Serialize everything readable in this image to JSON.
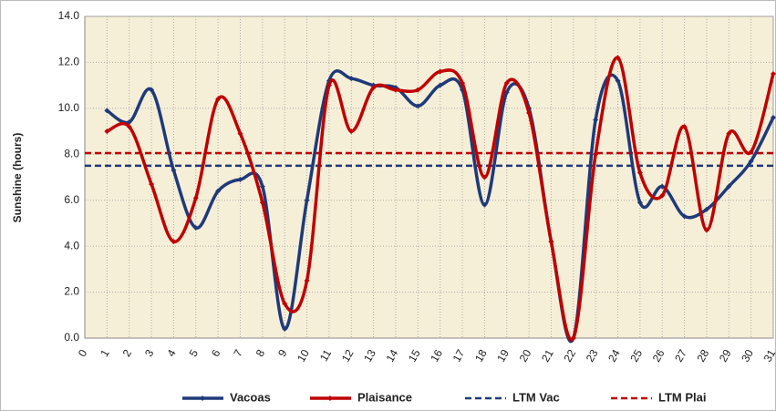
{
  "chart_data": {
    "type": "line",
    "y_label": "Sunshine (hours)",
    "x": [
      1,
      2,
      3,
      4,
      5,
      6,
      7,
      8,
      9,
      10,
      11,
      12,
      13,
      14,
      15,
      16,
      17,
      18,
      19,
      20,
      21,
      22,
      23,
      24,
      25,
      26,
      27,
      28,
      29,
      30,
      31
    ],
    "series": [
      {
        "name": "Vacoas",
        "color": "#1f3a7a",
        "values": [
          9.9,
          9.4,
          10.8,
          7.3,
          4.8,
          6.4,
          6.9,
          6.6,
          0.4,
          6.0,
          11.2,
          11.3,
          11.0,
          10.9,
          10.1,
          11.0,
          10.8,
          5.8,
          10.7,
          10.0,
          4.2,
          0.0,
          9.5,
          11.2,
          5.9,
          6.6,
          5.3,
          5.6,
          6.6,
          7.7,
          9.6
        ]
      },
      {
        "name": "Plaisance",
        "color": "#c00000",
        "values": [
          9.0,
          9.2,
          6.7,
          4.2,
          6.1,
          10.4,
          8.9,
          5.9,
          1.5,
          2.5,
          11.0,
          9.0,
          10.9,
          10.8,
          10.8,
          11.6,
          11.1,
          7.0,
          11.1,
          9.8,
          4.2,
          0.0,
          8.0,
          12.2,
          7.2,
          6.2,
          9.2,
          4.7,
          8.9,
          8.1,
          11.5
        ]
      }
    ],
    "reference_lines": [
      {
        "name": "LTM Vac",
        "color": "#1f3a7a",
        "value": 7.5,
        "dashed": true
      },
      {
        "name": "LTM Plai",
        "color": "#c00000",
        "value": 8.05,
        "dashed": true
      }
    ],
    "xlim": [
      0,
      31
    ],
    "xticks": [
      0,
      1,
      2,
      3,
      4,
      5,
      6,
      7,
      8,
      9,
      10,
      11,
      12,
      13,
      14,
      15,
      16,
      17,
      18,
      19,
      20,
      21,
      22,
      23,
      24,
      25,
      26,
      27,
      28,
      29,
      30,
      31
    ],
    "ylim": [
      0,
      14
    ],
    "yticks": [
      {
        "value": 0,
        "label": "0.0"
      },
      {
        "value": 2,
        "label": "2.0"
      },
      {
        "value": 4,
        "label": "4.0"
      },
      {
        "value": 6,
        "label": "6.0"
      },
      {
        "value": 8,
        "label": "8.0"
      },
      {
        "value": 10,
        "label": "10.0"
      },
      {
        "value": 12,
        "label": "12.0"
      },
      {
        "value": 14,
        "label": "14.0"
      }
    ],
    "grid": true,
    "smooth": true,
    "plot_background": "#f6efd8",
    "legend": "bottom"
  }
}
